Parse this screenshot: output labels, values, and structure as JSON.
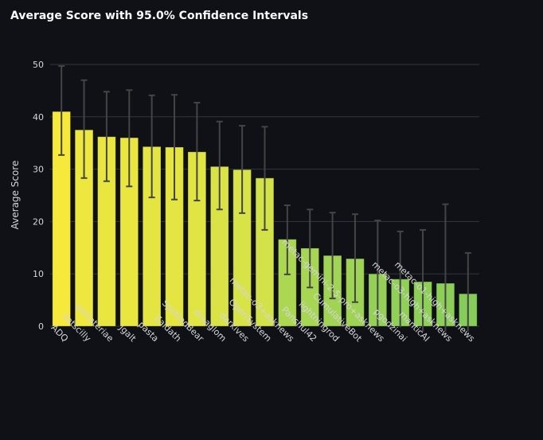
{
  "chart_data": {
    "type": "bar",
    "title": "Average Score with 95.0% Confidence Intervals",
    "xlabel": "",
    "ylabel": "Average Score",
    "ylim": [
      0,
      50
    ],
    "yticks": [
      0,
      10,
      20,
      30,
      40,
      50
    ],
    "grid": true,
    "categories": [
      "ADQ",
      "datscilly",
      "exmateriae",
      "Jgalt",
      "pasta",
      "Zaldath",
      "SpottedBear",
      "draaglom",
      "darkives",
      "OpenSystem",
      "metac-o3+asknews",
      "Panshul42",
      "lightningrod",
      "CumulativeBot",
      "metac-gemini-2-5-pro+asknews",
      "pgodzinai",
      "manticAI",
      "metac-o3-high+asknews",
      "metac-o1-high+asknews"
    ],
    "values": [
      41.0,
      37.5,
      36.2,
      36.0,
      34.3,
      34.2,
      33.3,
      30.5,
      29.9,
      28.3,
      16.6,
      14.9,
      13.5,
      12.9,
      10.0,
      9.0,
      8.5,
      8.2,
      6.2
    ],
    "ci_lower": [
      32.7,
      28.3,
      27.7,
      26.7,
      24.6,
      24.2,
      24.0,
      22.3,
      21.6,
      18.4,
      9.9,
      7.4,
      5.3,
      4.6,
      -0.1,
      -0.2,
      -1.0,
      -1.0,
      -1.0
    ],
    "ci_upper": [
      49.7,
      47.0,
      44.8,
      45.1,
      44.1,
      44.2,
      42.7,
      39.1,
      38.3,
      38.1,
      23.1,
      22.3,
      21.7,
      21.4,
      20.2,
      18.1,
      18.4,
      23.3,
      14.0
    ],
    "colors": {
      "high": "#f7e93b",
      "mid": "#c6df4e",
      "low": "#86cc5a",
      "error_bar": "#444444",
      "grid": "#34363c"
    }
  }
}
